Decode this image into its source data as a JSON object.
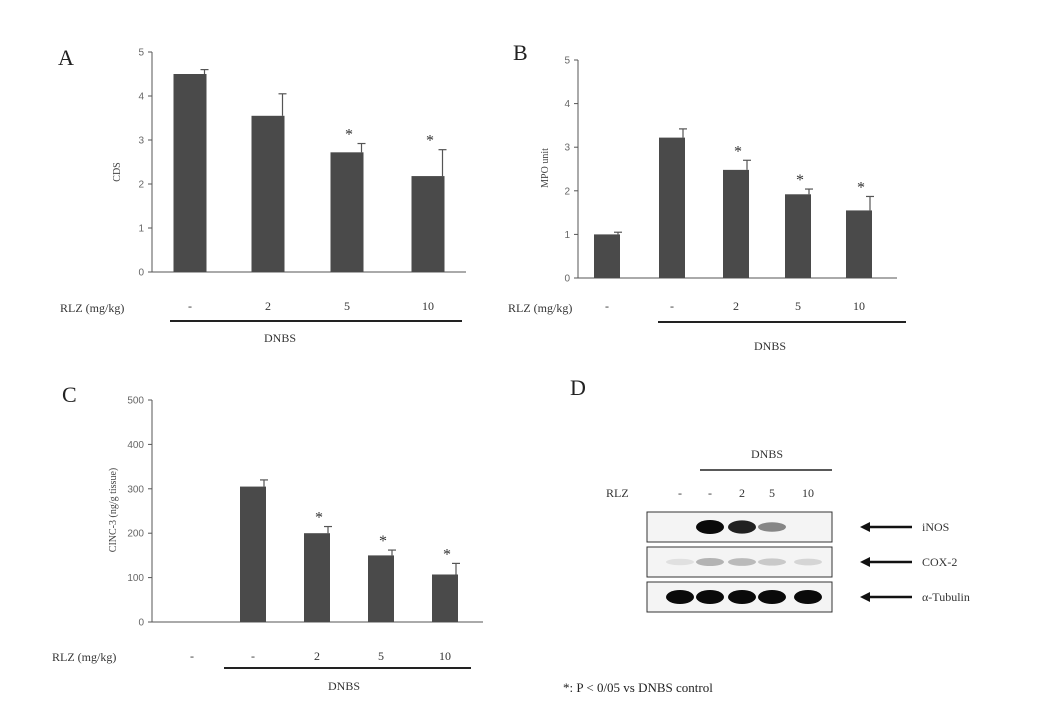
{
  "footnote": "*: P < 0/05 vs DNBS control",
  "chart_data": [
    {
      "panel": "A",
      "type": "bar",
      "ylabel": "CDS",
      "ylim": [
        0,
        5
      ],
      "yticks": [
        "0",
        "1",
        "2",
        "3",
        "4",
        "5"
      ],
      "treatment_label": "RLZ (mg/kg)",
      "treatment_group": "DNBS",
      "categories": [
        "-",
        "2",
        "5",
        "10"
      ],
      "values": [
        4.5,
        3.55,
        2.72,
        2.18
      ],
      "errors": [
        0.1,
        0.5,
        0.2,
        0.6
      ],
      "significant": [
        false,
        false,
        true,
        true
      ],
      "star": "*"
    },
    {
      "panel": "B",
      "type": "bar",
      "ylabel": "MPO unit",
      "ylim": [
        0,
        5
      ],
      "yticks": [
        "0",
        "1",
        "2",
        "3",
        "4",
        "5"
      ],
      "treatment_label": "RLZ (mg/kg)",
      "treatment_group": "DNBS",
      "categories": [
        "-",
        "-",
        "2",
        "5",
        "10"
      ],
      "values": [
        1.0,
        3.22,
        2.48,
        1.92,
        1.55
      ],
      "errors": [
        0.05,
        0.2,
        0.22,
        0.12,
        0.32
      ],
      "significant": [
        false,
        false,
        true,
        true,
        true
      ],
      "star": "*"
    },
    {
      "panel": "C",
      "type": "bar",
      "ylabel": "CINC-3 (ng/g tissue)",
      "ylim": [
        0,
        500
      ],
      "yticks": [
        "0",
        "100",
        "200",
        "300",
        "400",
        "500"
      ],
      "treatment_label": "RLZ (mg/kg)",
      "treatment_group": "DNBS",
      "categories": [
        "-",
        "-",
        "2",
        "5",
        "10"
      ],
      "values": [
        0,
        305,
        200,
        150,
        107
      ],
      "errors": [
        0,
        15,
        15,
        12,
        25
      ],
      "significant": [
        false,
        false,
        true,
        true,
        true
      ],
      "star": "*"
    }
  ],
  "blot": {
    "panel": "D",
    "group_label": "DNBS",
    "row_label": "RLZ",
    "lanes": [
      "-",
      "-",
      "2",
      "5",
      "10"
    ],
    "bands": [
      {
        "name": "iNOS",
        "intensity": [
          0,
          1,
          0.9,
          0.45,
          0
        ]
      },
      {
        "name": "COX-2",
        "intensity": [
          0.05,
          0.25,
          0.22,
          0.15,
          0.1
        ]
      },
      {
        "name": "α-Tubulin",
        "intensity": [
          1,
          1,
          1,
          1,
          1
        ]
      }
    ]
  }
}
